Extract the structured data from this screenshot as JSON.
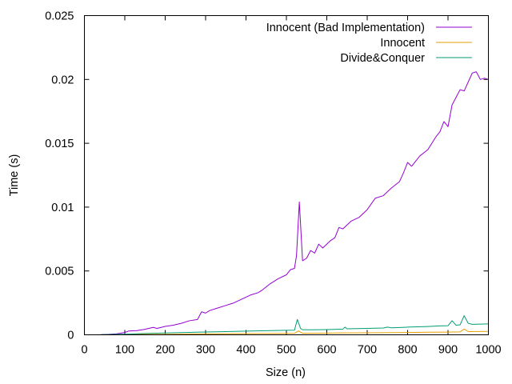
{
  "chart_data": {
    "type": "line",
    "title": "",
    "xlabel": "Size (n)",
    "ylabel": "Time (s)",
    "xlim": [
      0,
      1000
    ],
    "ylim": [
      0,
      0.025
    ],
    "xticks": [
      0,
      100,
      200,
      300,
      400,
      500,
      600,
      700,
      800,
      900,
      1000
    ],
    "yticks": [
      0,
      0.005,
      0.01,
      0.015,
      0.02,
      0.025
    ],
    "xtick_labels": [
      "0",
      "100",
      "200",
      "300",
      "400",
      "500",
      "600",
      "700",
      "800",
      "900",
      "1000"
    ],
    "ytick_labels": [
      "0",
      "0.005",
      "0.01",
      "0.015",
      "0.02",
      "0.025"
    ],
    "grid": false,
    "legend_position": "top-right",
    "series": [
      {
        "name": "Innocent (Bad Implementation)",
        "color": "#9400d3",
        "points": [
          [
            40,
            1e-05
          ],
          [
            60,
            4e-05
          ],
          [
            80,
            8e-05
          ],
          [
            100,
            0.00018
          ],
          [
            110,
            0.0003
          ],
          [
            130,
            0.00033
          ],
          [
            150,
            0.00043
          ],
          [
            170,
            0.00058
          ],
          [
            180,
            0.0005
          ],
          [
            200,
            0.00066
          ],
          [
            220,
            0.00075
          ],
          [
            240,
            0.0009
          ],
          [
            260,
            0.0011
          ],
          [
            280,
            0.0012
          ],
          [
            290,
            0.0018
          ],
          [
            300,
            0.0017
          ],
          [
            310,
            0.0019
          ],
          [
            330,
            0.0021
          ],
          [
            350,
            0.0023
          ],
          [
            370,
            0.0025
          ],
          [
            390,
            0.0028
          ],
          [
            410,
            0.0031
          ],
          [
            430,
            0.0033
          ],
          [
            440,
            0.0035
          ],
          [
            460,
            0.004
          ],
          [
            480,
            0.0044
          ],
          [
            500,
            0.0047
          ],
          [
            510,
            0.0051
          ],
          [
            520,
            0.0052
          ],
          [
            525,
            0.0062
          ],
          [
            532,
            0.0104
          ],
          [
            540,
            0.0058
          ],
          [
            550,
            0.006
          ],
          [
            560,
            0.0066
          ],
          [
            570,
            0.0064
          ],
          [
            580,
            0.0071
          ],
          [
            590,
            0.0068
          ],
          [
            610,
            0.0074
          ],
          [
            620,
            0.0076
          ],
          [
            630,
            0.0084
          ],
          [
            640,
            0.0083
          ],
          [
            660,
            0.0089
          ],
          [
            680,
            0.0092
          ],
          [
            700,
            0.0098
          ],
          [
            720,
            0.0107
          ],
          [
            740,
            0.0109
          ],
          [
            760,
            0.0115
          ],
          [
            780,
            0.012
          ],
          [
            790,
            0.0127
          ],
          [
            800,
            0.0135
          ],
          [
            810,
            0.0132
          ],
          [
            830,
            0.014
          ],
          [
            850,
            0.0145
          ],
          [
            870,
            0.0155
          ],
          [
            880,
            0.0159
          ],
          [
            890,
            0.0167
          ],
          [
            900,
            0.0163
          ],
          [
            910,
            0.018
          ],
          [
            920,
            0.0186
          ],
          [
            930,
            0.0192
          ],
          [
            940,
            0.0191
          ],
          [
            950,
            0.0198
          ],
          [
            960,
            0.0205
          ],
          [
            970,
            0.0206
          ],
          [
            980,
            0.02
          ],
          [
            990,
            0.0201
          ],
          [
            1000,
            0.02
          ]
        ]
      },
      {
        "name": "Innocent",
        "color": "#e69f00",
        "points": [
          [
            40,
            0.0
          ],
          [
            100,
            2e-05
          ],
          [
            200,
            4e-05
          ],
          [
            300,
            7e-05
          ],
          [
            400,
            9e-05
          ],
          [
            500,
            0.00011
          ],
          [
            520,
            0.00012
          ],
          [
            530,
            0.0003
          ],
          [
            540,
            0.00012
          ],
          [
            600,
            0.00013
          ],
          [
            640,
            0.00015
          ],
          [
            700,
            0.00016
          ],
          [
            800,
            0.00018
          ],
          [
            850,
            0.0002
          ],
          [
            900,
            0.00021
          ],
          [
            930,
            0.00023
          ],
          [
            940,
            0.00045
          ],
          [
            950,
            0.00025
          ],
          [
            1000,
            0.00027
          ]
        ]
      },
      {
        "name": "Divide&Conquer",
        "color": "#009e73",
        "points": [
          [
            40,
            1e-05
          ],
          [
            100,
            5e-05
          ],
          [
            150,
            0.0001
          ],
          [
            200,
            0.00014
          ],
          [
            250,
            0.00018
          ],
          [
            300,
            0.00022
          ],
          [
            350,
            0.00025
          ],
          [
            400,
            0.00029
          ],
          [
            450,
            0.00032
          ],
          [
            500,
            0.00035
          ],
          [
            520,
            0.00036
          ],
          [
            527,
            0.0012
          ],
          [
            535,
            0.0005
          ],
          [
            540,
            0.0004
          ],
          [
            560,
            0.00039
          ],
          [
            600,
            0.00041
          ],
          [
            640,
            0.00045
          ],
          [
            645,
            0.0006
          ],
          [
            650,
            0.00047
          ],
          [
            700,
            0.0005
          ],
          [
            740,
            0.00053
          ],
          [
            750,
            0.0006
          ],
          [
            760,
            0.00055
          ],
          [
            800,
            0.0006
          ],
          [
            850,
            0.00065
          ],
          [
            880,
            0.0007
          ],
          [
            900,
            0.00071
          ],
          [
            910,
            0.0011
          ],
          [
            920,
            0.00075
          ],
          [
            930,
            0.00078
          ],
          [
            940,
            0.0015
          ],
          [
            950,
            0.0009
          ],
          [
            960,
            0.00082
          ],
          [
            1000,
            0.00085
          ]
        ]
      }
    ]
  }
}
